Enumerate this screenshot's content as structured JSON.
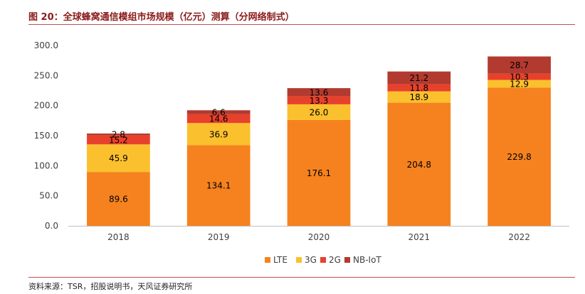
{
  "figure_title": "图 20：全球蜂窝通信模组市场规模（亿元）测算（分网络制式）",
  "source": "资料来源：TSR，招股说明书，天风证券研究所",
  "chart_data": {
    "type": "bar",
    "stacked": true,
    "categories": [
      "2018",
      "2019",
      "2020",
      "2021",
      "2022"
    ],
    "series": [
      {
        "name": "LTE",
        "color": "#f5821f",
        "values": [
          89.6,
          134.1,
          176.1,
          204.8,
          229.8
        ]
      },
      {
        "name": "3G",
        "color": "#fbc02d",
        "values": [
          45.9,
          36.9,
          26.0,
          18.9,
          12.9
        ]
      },
      {
        "name": "2G",
        "color": "#e8412b",
        "values": [
          15.2,
          14.6,
          13.3,
          11.8,
          10.3
        ]
      },
      {
        "name": "NB-IoT",
        "color": "#b23a2f",
        "values": [
          2.8,
          6.6,
          13.6,
          21.2,
          28.7
        ]
      }
    ],
    "y_ticks": [
      "0.0",
      "50.0",
      "100.0",
      "150.0",
      "200.0",
      "250.0",
      "300.0"
    ],
    "ylim": [
      0,
      300
    ],
    "grid": false,
    "legend_position": "bottom"
  }
}
